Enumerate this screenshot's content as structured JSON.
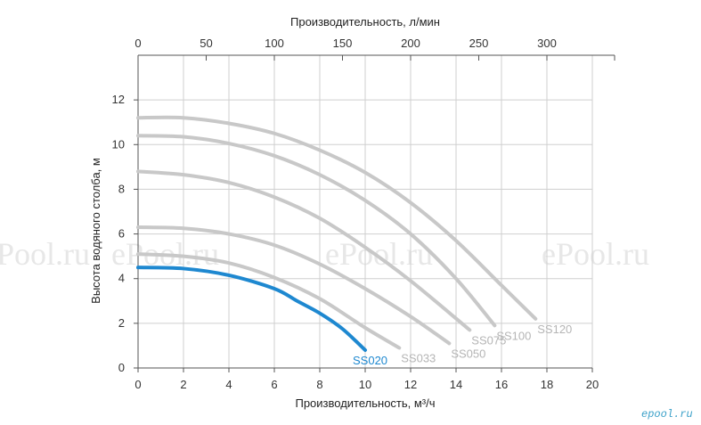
{
  "chart_data": {
    "type": "line",
    "title": "",
    "xlabel": "Производительность, м³/ч",
    "x2label": "Производительность, л/мин",
    "ylabel": "Высота водяного столба, м",
    "xlim": [
      0,
      20
    ],
    "ylim": [
      0,
      14
    ],
    "x2lim": [
      0,
      333.33
    ],
    "xticks": [
      "0",
      "2",
      "4",
      "6",
      "8",
      "10",
      "12",
      "14",
      "16",
      "18",
      "20"
    ],
    "yticks": [
      "0",
      "2",
      "4",
      "6",
      "8",
      "10",
      "12"
    ],
    "x2ticks": [
      "0",
      "50",
      "100",
      "150",
      "200",
      "250",
      "300"
    ],
    "grid": true,
    "colors": {
      "highlight": "#1e88d0",
      "muted": "#c8c8c8",
      "muted_label": "#b5b5b5"
    },
    "series": [
      {
        "name": "SS020",
        "highlight": true,
        "x": [
          0,
          2,
          4,
          6,
          7,
          8,
          9,
          10
        ],
        "y": [
          4.5,
          4.45,
          4.15,
          3.55,
          3.0,
          2.45,
          1.75,
          0.8
        ]
      },
      {
        "name": "SS033",
        "highlight": false,
        "x": [
          0,
          2,
          4,
          6,
          8,
          10,
          11.5
        ],
        "y": [
          5.1,
          5.0,
          4.7,
          4.05,
          3.1,
          1.8,
          0.9
        ]
      },
      {
        "name": "SS050",
        "highlight": false,
        "x": [
          0,
          2,
          4,
          6,
          8,
          10,
          12,
          13.7
        ],
        "y": [
          6.3,
          6.25,
          6.0,
          5.5,
          4.65,
          3.55,
          2.3,
          1.1
        ]
      },
      {
        "name": "SS075",
        "highlight": false,
        "x": [
          0,
          2,
          4,
          6,
          8,
          10,
          12,
          14.6
        ],
        "y": [
          8.8,
          8.65,
          8.3,
          7.65,
          6.7,
          5.4,
          3.9,
          1.7
        ]
      },
      {
        "name": "SS100",
        "highlight": false,
        "x": [
          0,
          2,
          4,
          6,
          8,
          10,
          12,
          14,
          15.7
        ],
        "y": [
          10.4,
          10.35,
          10.05,
          9.5,
          8.65,
          7.5,
          6.0,
          4.0,
          1.9
        ]
      },
      {
        "name": "SS120",
        "highlight": false,
        "x": [
          0,
          2,
          4,
          6,
          8,
          10,
          12,
          14,
          16,
          17.5
        ],
        "y": [
          11.2,
          11.2,
          10.95,
          10.5,
          9.75,
          8.75,
          7.4,
          5.7,
          3.7,
          2.2
        ]
      }
    ]
  },
  "watermarks": [
    "ePool.ru",
    "ePool.ru",
    "ePool.ru",
    "ePool.ru"
  ],
  "brand": "epool.ru"
}
